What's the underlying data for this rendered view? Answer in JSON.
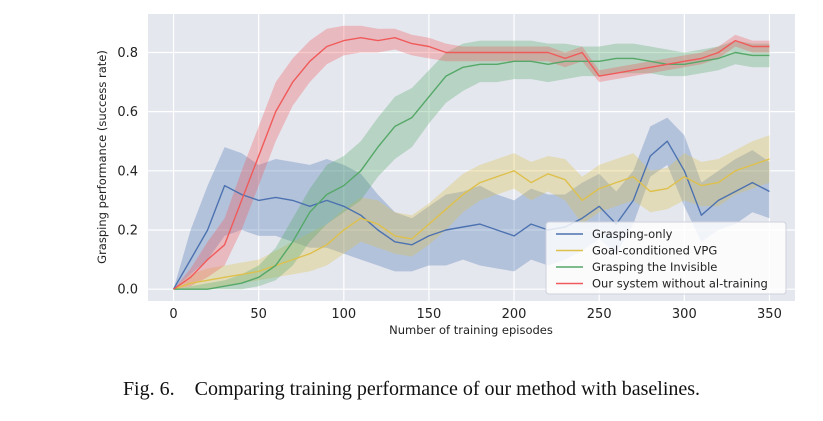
{
  "caption": "Fig. 6.    Comparing training performance of our method with baselines.",
  "chart_data": {
    "type": "line",
    "title": "",
    "xlabel": "Number of training episodes",
    "ylabel": "Grasping performance (success rate)",
    "xlim": [
      -15,
      365
    ],
    "ylim": [
      -0.04,
      0.93
    ],
    "xticks": [
      0,
      50,
      100,
      150,
      200,
      250,
      300,
      350
    ],
    "yticks": [
      0.0,
      0.2,
      0.4,
      0.6,
      0.8
    ],
    "ytick_labels": [
      "0.0",
      "0.2",
      "0.4",
      "0.6",
      "0.8"
    ],
    "grid": true,
    "background": "#e5e7ef",
    "legend_position": "lower-right",
    "shaded_bands": true,
    "series": [
      {
        "name": "Grasping-only",
        "color": "#4c72b0",
        "x": [
          0,
          10,
          20,
          30,
          40,
          50,
          60,
          70,
          80,
          90,
          100,
          110,
          120,
          130,
          140,
          150,
          160,
          170,
          180,
          190,
          200,
          210,
          220,
          230,
          240,
          250,
          260,
          270,
          280,
          290,
          300,
          310,
          320,
          330,
          340,
          350
        ],
        "y": [
          0.0,
          0.1,
          0.2,
          0.35,
          0.32,
          0.3,
          0.31,
          0.3,
          0.28,
          0.3,
          0.28,
          0.25,
          0.2,
          0.16,
          0.15,
          0.18,
          0.2,
          0.21,
          0.22,
          0.2,
          0.18,
          0.22,
          0.2,
          0.21,
          0.24,
          0.28,
          0.22,
          0.3,
          0.45,
          0.5,
          0.4,
          0.25,
          0.3,
          0.33,
          0.36,
          0.33
        ],
        "lower": [
          0.0,
          0.05,
          0.1,
          0.18,
          0.2,
          0.18,
          0.18,
          0.16,
          0.14,
          0.14,
          0.12,
          0.1,
          0.08,
          0.06,
          0.06,
          0.08,
          0.08,
          0.1,
          0.08,
          0.07,
          0.06,
          0.1,
          0.08,
          0.1,
          0.13,
          0.17,
          0.12,
          0.22,
          0.38,
          0.42,
          0.28,
          0.16,
          0.2,
          0.22,
          0.26,
          0.24
        ],
        "upper": [
          0.0,
          0.2,
          0.35,
          0.48,
          0.46,
          0.42,
          0.44,
          0.43,
          0.42,
          0.44,
          0.42,
          0.39,
          0.32,
          0.26,
          0.24,
          0.28,
          0.32,
          0.33,
          0.35,
          0.32,
          0.3,
          0.34,
          0.32,
          0.32,
          0.36,
          0.39,
          0.33,
          0.4,
          0.55,
          0.58,
          0.52,
          0.36,
          0.4,
          0.44,
          0.47,
          0.43
        ]
      },
      {
        "name": "Goal-conditioned VPG",
        "color": "#dec04c",
        "x": [
          0,
          10,
          20,
          30,
          40,
          50,
          60,
          70,
          80,
          90,
          100,
          110,
          120,
          130,
          140,
          150,
          160,
          170,
          180,
          190,
          200,
          210,
          220,
          230,
          240,
          250,
          260,
          270,
          280,
          290,
          300,
          310,
          320,
          330,
          340,
          350
        ],
        "y": [
          0.0,
          0.02,
          0.03,
          0.04,
          0.05,
          0.06,
          0.08,
          0.1,
          0.12,
          0.15,
          0.2,
          0.24,
          0.22,
          0.18,
          0.17,
          0.22,
          0.27,
          0.32,
          0.36,
          0.38,
          0.4,
          0.36,
          0.39,
          0.37,
          0.3,
          0.34,
          0.36,
          0.38,
          0.33,
          0.34,
          0.38,
          0.35,
          0.36,
          0.4,
          0.42,
          0.44
        ],
        "lower": [
          0.0,
          0.0,
          0.0,
          0.01,
          0.02,
          0.03,
          0.04,
          0.05,
          0.06,
          0.08,
          0.12,
          0.16,
          0.14,
          0.12,
          0.11,
          0.15,
          0.2,
          0.26,
          0.3,
          0.32,
          0.34,
          0.3,
          0.33,
          0.3,
          0.22,
          0.26,
          0.28,
          0.3,
          0.26,
          0.27,
          0.3,
          0.28,
          0.28,
          0.32,
          0.34,
          0.36
        ],
        "upper": [
          0.0,
          0.05,
          0.07,
          0.08,
          0.09,
          0.1,
          0.13,
          0.16,
          0.19,
          0.22,
          0.27,
          0.31,
          0.3,
          0.26,
          0.25,
          0.29,
          0.34,
          0.39,
          0.42,
          0.44,
          0.46,
          0.43,
          0.45,
          0.44,
          0.38,
          0.42,
          0.44,
          0.46,
          0.4,
          0.41,
          0.46,
          0.43,
          0.44,
          0.47,
          0.5,
          0.52
        ]
      },
      {
        "name": "Grasping the Invisible",
        "color": "#55a868",
        "x": [
          0,
          10,
          20,
          30,
          40,
          50,
          60,
          70,
          80,
          90,
          100,
          110,
          120,
          130,
          140,
          150,
          160,
          170,
          180,
          190,
          200,
          210,
          220,
          230,
          240,
          250,
          260,
          270,
          280,
          290,
          300,
          310,
          320,
          330,
          340,
          350
        ],
        "y": [
          0.0,
          0.0,
          0.0,
          0.01,
          0.02,
          0.04,
          0.08,
          0.16,
          0.26,
          0.32,
          0.35,
          0.4,
          0.48,
          0.55,
          0.58,
          0.65,
          0.72,
          0.75,
          0.76,
          0.76,
          0.77,
          0.77,
          0.76,
          0.77,
          0.77,
          0.77,
          0.78,
          0.78,
          0.77,
          0.76,
          0.76,
          0.77,
          0.78,
          0.8,
          0.79,
          0.79
        ],
        "lower": [
          0.0,
          0.0,
          0.0,
          0.0,
          0.0,
          0.01,
          0.03,
          0.08,
          0.16,
          0.22,
          0.26,
          0.3,
          0.38,
          0.44,
          0.48,
          0.56,
          0.63,
          0.67,
          0.7,
          0.7,
          0.71,
          0.71,
          0.7,
          0.71,
          0.72,
          0.72,
          0.73,
          0.73,
          0.73,
          0.72,
          0.72,
          0.73,
          0.74,
          0.76,
          0.75,
          0.75
        ],
        "upper": [
          0.0,
          0.01,
          0.02,
          0.03,
          0.05,
          0.08,
          0.14,
          0.24,
          0.34,
          0.42,
          0.45,
          0.5,
          0.58,
          0.65,
          0.68,
          0.74,
          0.8,
          0.83,
          0.84,
          0.84,
          0.84,
          0.84,
          0.83,
          0.83,
          0.82,
          0.82,
          0.83,
          0.83,
          0.82,
          0.81,
          0.8,
          0.81,
          0.82,
          0.84,
          0.83,
          0.83
        ]
      },
      {
        "name": "Our system without al-training",
        "color": "#f05a5a",
        "x": [
          0,
          10,
          20,
          30,
          40,
          50,
          60,
          70,
          80,
          90,
          100,
          110,
          120,
          130,
          140,
          150,
          160,
          170,
          180,
          190,
          200,
          210,
          220,
          230,
          240,
          250,
          260,
          270,
          280,
          290,
          300,
          310,
          320,
          330,
          340,
          350
        ],
        "y": [
          0.0,
          0.04,
          0.1,
          0.15,
          0.3,
          0.45,
          0.6,
          0.7,
          0.77,
          0.82,
          0.84,
          0.85,
          0.84,
          0.85,
          0.83,
          0.82,
          0.8,
          0.8,
          0.8,
          0.8,
          0.8,
          0.8,
          0.8,
          0.78,
          0.8,
          0.72,
          0.73,
          0.74,
          0.75,
          0.76,
          0.77,
          0.78,
          0.8,
          0.84,
          0.82,
          0.82
        ],
        "lower": [
          0.0,
          0.01,
          0.04,
          0.08,
          0.2,
          0.35,
          0.5,
          0.62,
          0.7,
          0.76,
          0.79,
          0.8,
          0.8,
          0.81,
          0.79,
          0.78,
          0.77,
          0.77,
          0.77,
          0.77,
          0.77,
          0.77,
          0.77,
          0.75,
          0.77,
          0.7,
          0.71,
          0.72,
          0.73,
          0.74,
          0.75,
          0.76,
          0.78,
          0.82,
          0.8,
          0.8
        ],
        "upper": [
          0.0,
          0.07,
          0.16,
          0.24,
          0.4,
          0.55,
          0.7,
          0.78,
          0.84,
          0.88,
          0.89,
          0.89,
          0.88,
          0.88,
          0.86,
          0.85,
          0.83,
          0.82,
          0.82,
          0.82,
          0.82,
          0.82,
          0.82,
          0.8,
          0.82,
          0.74,
          0.75,
          0.76,
          0.77,
          0.78,
          0.79,
          0.8,
          0.82,
          0.86,
          0.84,
          0.84
        ]
      }
    ]
  }
}
